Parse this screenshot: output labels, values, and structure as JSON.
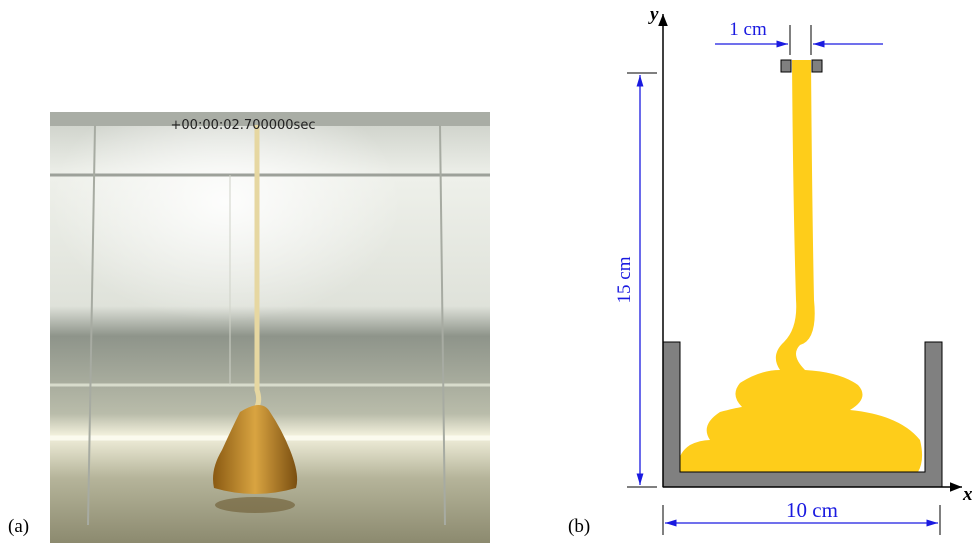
{
  "panel_a": {
    "label": "(a)",
    "timestamp": "+00:00:02.700000sec"
  },
  "panel_b": {
    "label": "(b)",
    "axes": {
      "x": "x",
      "y": "y"
    },
    "dimensions": {
      "nozzle_width": "1 cm",
      "height": "15 cm",
      "width": "10 cm"
    }
  }
}
